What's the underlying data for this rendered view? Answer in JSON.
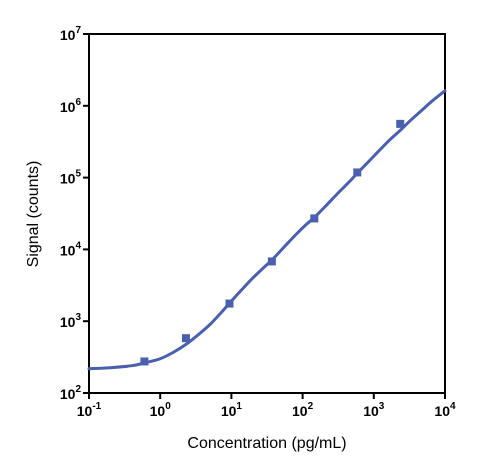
{
  "chart_data": {
    "type": "scatter",
    "xlabel": "Concentration (pg/mL)",
    "ylabel": "Signal (counts)",
    "x_scale": "log",
    "y_scale": "log",
    "xlim": [
      0.1,
      10000
    ],
    "ylim": [
      100,
      10000000
    ],
    "x_ticks": [
      {
        "base": "10",
        "exp": "-1",
        "value": 0.1
      },
      {
        "base": "10",
        "exp": "0",
        "value": 1
      },
      {
        "base": "10",
        "exp": "1",
        "value": 10
      },
      {
        "base": "10",
        "exp": "2",
        "value": 100
      },
      {
        "base": "10",
        "exp": "3",
        "value": 1000
      },
      {
        "base": "10",
        "exp": "4",
        "value": 10000
      }
    ],
    "y_ticks": [
      {
        "base": "10",
        "exp": "2",
        "value": 100
      },
      {
        "base": "10",
        "exp": "3",
        "value": 1000
      },
      {
        "base": "10",
        "exp": "4",
        "value": 10000
      },
      {
        "base": "10",
        "exp": "5",
        "value": 100000
      },
      {
        "base": "10",
        "exp": "6",
        "value": 1000000
      },
      {
        "base": "10",
        "exp": "7",
        "value": 10000000
      }
    ],
    "grid": false,
    "series": [
      {
        "kind": "points",
        "color": "#4a5fad",
        "marker": "square",
        "x": [
          0.6,
          2.3,
          9.4,
          37,
          146,
          586,
          2350
        ],
        "y": [
          275,
          580,
          1760,
          6800,
          27000,
          118000,
          560000
        ]
      },
      {
        "kind": "fit-curve",
        "color": "#4a5fad",
        "x": [
          0.1,
          0.2,
          0.4,
          0.6,
          1,
          1.5,
          2.3,
          3.5,
          5,
          7,
          9.4,
          14,
          20,
          28,
          37,
          55,
          80,
          110,
          146,
          220,
          320,
          450,
          586,
          850,
          1200,
          1700,
          2350,
          3300,
          4500,
          6500,
          10000
        ],
        "y": [
          218,
          225,
          240,
          262,
          300,
          365,
          475,
          660,
          900,
          1280,
          1780,
          2750,
          4000,
          5500,
          7100,
          10800,
          16000,
          21800,
          27800,
          42000,
          62000,
          87000,
          115000,
          168000,
          240000,
          340000,
          455000,
          630000,
          830000,
          1150000,
          1620000
        ]
      }
    ]
  }
}
